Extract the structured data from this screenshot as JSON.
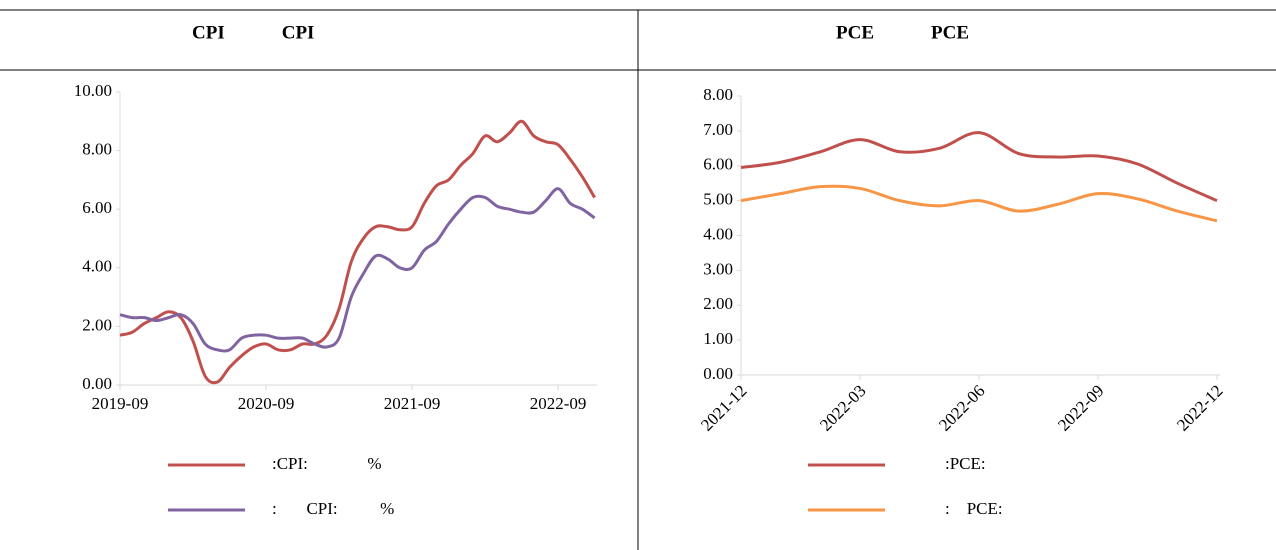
{
  "chart_data": [
    {
      "type": "line",
      "title": "CPI            CPI",
      "categories": [
        "2019-09",
        null,
        null,
        null,
        null,
        null,
        null,
        null,
        null,
        null,
        null,
        null,
        "2020-09",
        null,
        null,
        null,
        null,
        null,
        null,
        null,
        null,
        null,
        null,
        null,
        "2021-09",
        null,
        null,
        null,
        null,
        null,
        null,
        null,
        null,
        null,
        null,
        null,
        "2022-09",
        null,
        null,
        null
      ],
      "series": [
        {
          "name": ":CPI:              %",
          "color": "#c0504d",
          "values": [
            1.7,
            1.8,
            2.1,
            2.3,
            2.5,
            2.3,
            1.5,
            0.3,
            0.1,
            0.6,
            1.0,
            1.3,
            1.4,
            1.2,
            1.2,
            1.4,
            1.4,
            1.7,
            2.6,
            4.2,
            5.0,
            5.4,
            5.4,
            5.3,
            5.4,
            6.2,
            6.8,
            7.0,
            7.5,
            7.9,
            8.5,
            8.3,
            8.6,
            9.0,
            8.5,
            8.3,
            8.2,
            7.7,
            7.1,
            6.4
          ]
        },
        {
          "name": ":       CPI:          %",
          "color": "#8064a2",
          "values": [
            2.4,
            2.3,
            2.3,
            2.2,
            2.3,
            2.4,
            2.1,
            1.4,
            1.2,
            1.2,
            1.6,
            1.7,
            1.7,
            1.6,
            1.6,
            1.6,
            1.4,
            1.3,
            1.6,
            3.0,
            3.8,
            4.4,
            4.3,
            4.0,
            4.0,
            4.6,
            4.9,
            5.5,
            6.0,
            6.4,
            6.4,
            6.1,
            6.0,
            5.9,
            5.9,
            6.3,
            6.7,
            6.2,
            6.0,
            5.7
          ]
        }
      ],
      "ylim": [
        0,
        10
      ],
      "yticks": [
        {
          "value": 0,
          "label": "0.00"
        },
        {
          "value": 2,
          "label": "2.00"
        },
        {
          "value": 4,
          "label": "4.00"
        },
        {
          "value": 6,
          "label": "6.00"
        },
        {
          "value": 8,
          "label": "8.00"
        },
        {
          "value": 10,
          "label": "10.00"
        }
      ]
    },
    {
      "type": "line",
      "title": "PCE            PCE",
      "categories": [
        "2021-12",
        null,
        null,
        "2022-03",
        null,
        null,
        "2022-06",
        null,
        null,
        "2022-09",
        null,
        null,
        "2022-12"
      ],
      "series": [
        {
          "name": ":PCE:",
          "color": "#c0504d",
          "values": [
            5.95,
            6.1,
            6.4,
            6.75,
            6.4,
            6.5,
            6.95,
            6.35,
            6.25,
            6.28,
            6.05,
            5.5,
            5.0
          ]
        },
        {
          "name": ":    PCE:",
          "color": "#f79646",
          "values": [
            5.0,
            5.2,
            5.4,
            5.35,
            5.0,
            4.85,
            5.0,
            4.7,
            4.9,
            5.2,
            5.05,
            4.7,
            4.42
          ]
        }
      ],
      "ylim": [
        0,
        8
      ],
      "yticks": [
        {
          "value": 0,
          "label": "0.00"
        },
        {
          "value": 1,
          "label": "1.00"
        },
        {
          "value": 2,
          "label": "2.00"
        },
        {
          "value": 3,
          "label": "3.00"
        },
        {
          "value": 4,
          "label": "4.00"
        },
        {
          "value": 5,
          "label": "5.00"
        },
        {
          "value": 6,
          "label": "6.00"
        },
        {
          "value": 7,
          "label": "7.00"
        },
        {
          "value": 8,
          "label": "8.00"
        }
      ],
      "xlabel_rotate": true
    }
  ]
}
